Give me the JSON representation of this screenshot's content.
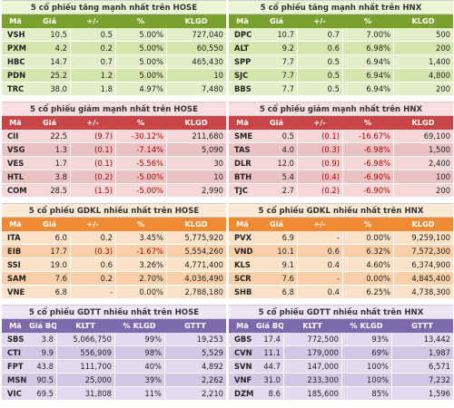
{
  "panels": [
    {
      "id": "hose-gain",
      "theme": "g",
      "kind": "a",
      "title": "5 cổ phiếu tăng mạnh nhất trên HOSE",
      "headers": [
        "Mã",
        "Giá",
        "+/-",
        "%",
        "KLGD"
      ],
      "rows": [
        [
          "VSH",
          "10.5",
          "0.5",
          "5.00%",
          "727,040"
        ],
        [
          "PXM",
          "4.2",
          "0.2",
          "5.00%",
          "60,550"
        ],
        [
          "HBC",
          "14.7",
          "0.7",
          "5.00%",
          "465,430"
        ],
        [
          "PDN",
          "25.2",
          "1.2",
          "5.00%",
          "10"
        ],
        [
          "TRC",
          "38.0",
          "1.8",
          "4.97%",
          "7,480"
        ]
      ]
    },
    {
      "id": "hnx-gain",
      "theme": "g",
      "kind": "a",
      "title": "5 cổ phiếu tăng mạnh nhất trên HNX",
      "headers": [
        "Mã",
        "Giá",
        "+/-",
        "%",
        "KLGD"
      ],
      "rows": [
        [
          "DPC",
          "10.7",
          "0.7",
          "7.00%",
          "500"
        ],
        [
          "ALT",
          "9.2",
          "0.6",
          "6.98%",
          "200"
        ],
        [
          "SPP",
          "7.7",
          "0.5",
          "6.94%",
          "1,400"
        ],
        [
          "SJC",
          "7.7",
          "0.5",
          "6.94%",
          "4,800"
        ],
        [
          "BBS",
          "7.7",
          "0.5",
          "6.94%",
          "200"
        ]
      ]
    },
    {
      "id": "hose-loss",
      "theme": "r",
      "kind": "a",
      "title": "5 cổ phiếu giảm mạnh nhất trên HOSE",
      "headers": [
        "Mã",
        "Giá",
        "+/-",
        "%",
        "KLGD"
      ],
      "rows": [
        [
          "CII",
          "22.5",
          "(9.7)",
          "-30.12%",
          "211,680"
        ],
        [
          "VSG",
          "1.3",
          "(0.1)",
          "-7.14%",
          "5,090"
        ],
        [
          "VES",
          "1.7",
          "(0.1)",
          "-5.56%",
          "30"
        ],
        [
          "HTL",
          "3.8",
          "(0.2)",
          "-5.00%",
          "10"
        ],
        [
          "COM",
          "28.5",
          "(1.5)",
          "-5.00%",
          "2,990"
        ]
      ]
    },
    {
      "id": "hnx-loss",
      "theme": "r",
      "kind": "a",
      "title": "5 cổ phiếu giảm mạnh nhất trên HNX",
      "headers": [
        "Mã",
        "Giá",
        "+/-",
        "%",
        "KLGD"
      ],
      "rows": [
        [
          "SME",
          "0.5",
          "(0.1)",
          "-16.67%",
          "69,100"
        ],
        [
          "TAS",
          "4.0",
          "(0.3)",
          "-6.98%",
          "1,500"
        ],
        [
          "DLR",
          "12.0",
          "(0.9)",
          "-6.98%",
          "2,400"
        ],
        [
          "BTH",
          "5.4",
          "(0.4)",
          "-6.90%",
          "100"
        ],
        [
          "TJC",
          "2.7",
          "(0.2)",
          "-6.90%",
          "200"
        ]
      ]
    },
    {
      "id": "hose-volume",
      "theme": "o",
      "kind": "a",
      "title": "5 cổ phiếu GDKL nhiều nhất trên HOSE",
      "headers": [
        "Mã",
        "Giá",
        "+/-",
        "%",
        "KLGD"
      ],
      "rows": [
        [
          "ITA",
          "6.0",
          "0.2",
          "3.45%",
          "5,775,920"
        ],
        [
          "EIB",
          "17.7",
          "(0.3)",
          "-1.67%",
          "5,554,260"
        ],
        [
          "SSI",
          "19.0",
          "0.6",
          "3.26%",
          "4,771,400"
        ],
        [
          "SAM",
          "7.6",
          "0.2",
          "2.70%",
          "4,036,490"
        ],
        [
          "VNE",
          "6.8",
          "-",
          "0.00%",
          "2,788,180"
        ]
      ]
    },
    {
      "id": "hnx-volume",
      "theme": "o",
      "kind": "a",
      "title": "5 cổ phiếu GDKL nhiều nhất trên HNX",
      "headers": [
        "Mã",
        "Giá",
        "+/-",
        "%",
        "KLGD"
      ],
      "rows": [
        [
          "PVX",
          "6.9",
          "-",
          "0.00%",
          "9,259,100"
        ],
        [
          "VND",
          "10.1",
          "0.6",
          "6.32%",
          "7,572,300"
        ],
        [
          "KLS",
          "9.1",
          "0.4",
          "4.60%",
          "6,374,900"
        ],
        [
          "SCR",
          "7.6",
          "-",
          "0.00%",
          "4,845,400"
        ],
        [
          "SHB",
          "6.8",
          "0.4",
          "6.25%",
          "4,738,300"
        ]
      ]
    },
    {
      "id": "hose-value",
      "theme": "p",
      "kind": "b",
      "title": "5 cổ phiếu GDTT nhiều nhất trên HOSE",
      "headers": [
        "Mã",
        "Giá BQ",
        "KLTT",
        "% KLGD",
        "GTTT"
      ],
      "rows": [
        [
          "SBS",
          "3.8",
          "5,066,750",
          "99%",
          "19,253"
        ],
        [
          "CTI",
          "9.9",
          "556,909",
          "98%",
          "5,529"
        ],
        [
          "FPT",
          "43.8",
          "111,700",
          "40%",
          "4,892"
        ],
        [
          "MSN",
          "90.5",
          "25,000",
          "39%",
          "2,262"
        ],
        [
          "VIC",
          "69.5",
          "31,808",
          "11%",
          "2,210"
        ]
      ]
    },
    {
      "id": "hnx-value",
      "theme": "p",
      "kind": "b",
      "title": "5 cổ phiếu GDTT nhiều nhất trên HNX",
      "headers": [
        "Mã",
        "Giá BQ",
        "KLTT",
        "% KLGD",
        "GTTT"
      ],
      "rows": [
        [
          "GBS",
          "17.4",
          "772,500",
          "93%",
          "13,442"
        ],
        [
          "CVN",
          "11.1",
          "179,000",
          "69%",
          "1,987"
        ],
        [
          "SVN",
          "44.7",
          "147,000",
          "100%",
          "6,571"
        ],
        [
          "VNF",
          "31.0",
          "233,300",
          "100%",
          "7,232"
        ],
        [
          "DZM",
          "8.6",
          "185,600",
          "85%",
          "1,596"
        ]
      ]
    }
  ]
}
